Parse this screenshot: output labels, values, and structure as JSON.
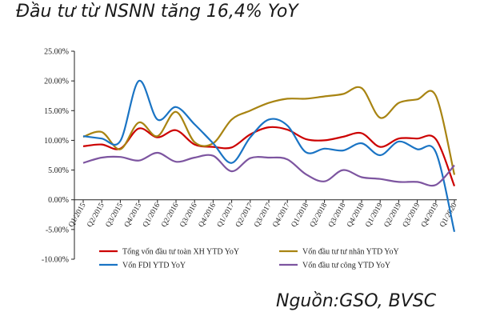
{
  "title": "Đầu tư từ NSNN tăng 16,4% YoY",
  "source": "Nguồn:GSO, BVSC",
  "chart_data": {
    "type": "line",
    "categories": [
      "Q1/2015",
      "Q2/2015",
      "Q3/2015",
      "Q4/2015",
      "Q1/2016",
      "Q2/2016",
      "Q3/2016",
      "Q4/2016",
      "Q1/2017",
      "Q2/2017",
      "Q3/2017",
      "Q4/2017",
      "Q1/2018",
      "Q2/2018",
      "Q3/2018",
      "Q4/2018",
      "Q1/2019",
      "Q2/2019",
      "Q3/2019",
      "Q4/2019",
      "Q1/2020"
    ],
    "ylim": [
      -10,
      25
    ],
    "yticks": [
      "-10.00%",
      "-5.00%",
      "0.00%",
      "5.00%",
      "10.00%",
      "15.00%",
      "20.00%",
      "25.00%"
    ],
    "ytick_values": [
      -10,
      -5,
      0,
      5,
      10,
      15,
      20,
      25
    ],
    "grid": false,
    "legend_position": "bottom",
    "series": [
      {
        "name": "Tổng vốn đầu tư toàn XH YTD YoY",
        "color": "#cc0000",
        "values": [
          9.0,
          9.3,
          8.6,
          12.0,
          10.5,
          11.7,
          9.3,
          8.9,
          8.8,
          11.0,
          12.2,
          11.8,
          10.2,
          10.0,
          10.6,
          11.2,
          8.9,
          10.3,
          10.3,
          10.2,
          2.3
        ]
      },
      {
        "name": "Vốn đầu tư tư nhân YTD YoY",
        "color": "#a88412",
        "values": [
          10.6,
          11.4,
          8.5,
          13.0,
          10.7,
          14.8,
          9.7,
          9.5,
          13.5,
          15.0,
          16.3,
          17.0,
          17.0,
          17.4,
          17.8,
          18.8,
          13.8,
          16.3,
          16.9,
          17.5,
          4.2
        ]
      },
      {
        "name": "Vốn FDI YTD YoY",
        "color": "#1a74c4",
        "values": [
          10.7,
          10.3,
          9.9,
          20.0,
          13.5,
          15.6,
          12.7,
          9.5,
          6.2,
          10.5,
          13.5,
          12.5,
          8.0,
          8.6,
          8.3,
          9.5,
          7.5,
          9.8,
          8.5,
          8.0,
          -5.4
        ]
      },
      {
        "name": "Vốn đầu tư công YTD YoY",
        "color": "#7d55a0",
        "values": [
          6.2,
          7.1,
          7.2,
          6.6,
          7.9,
          6.4,
          7.1,
          7.4,
          4.8,
          7.0,
          7.1,
          6.8,
          4.3,
          3.1,
          5.0,
          3.8,
          3.5,
          3.0,
          3.0,
          2.5,
          5.8
        ]
      }
    ]
  }
}
